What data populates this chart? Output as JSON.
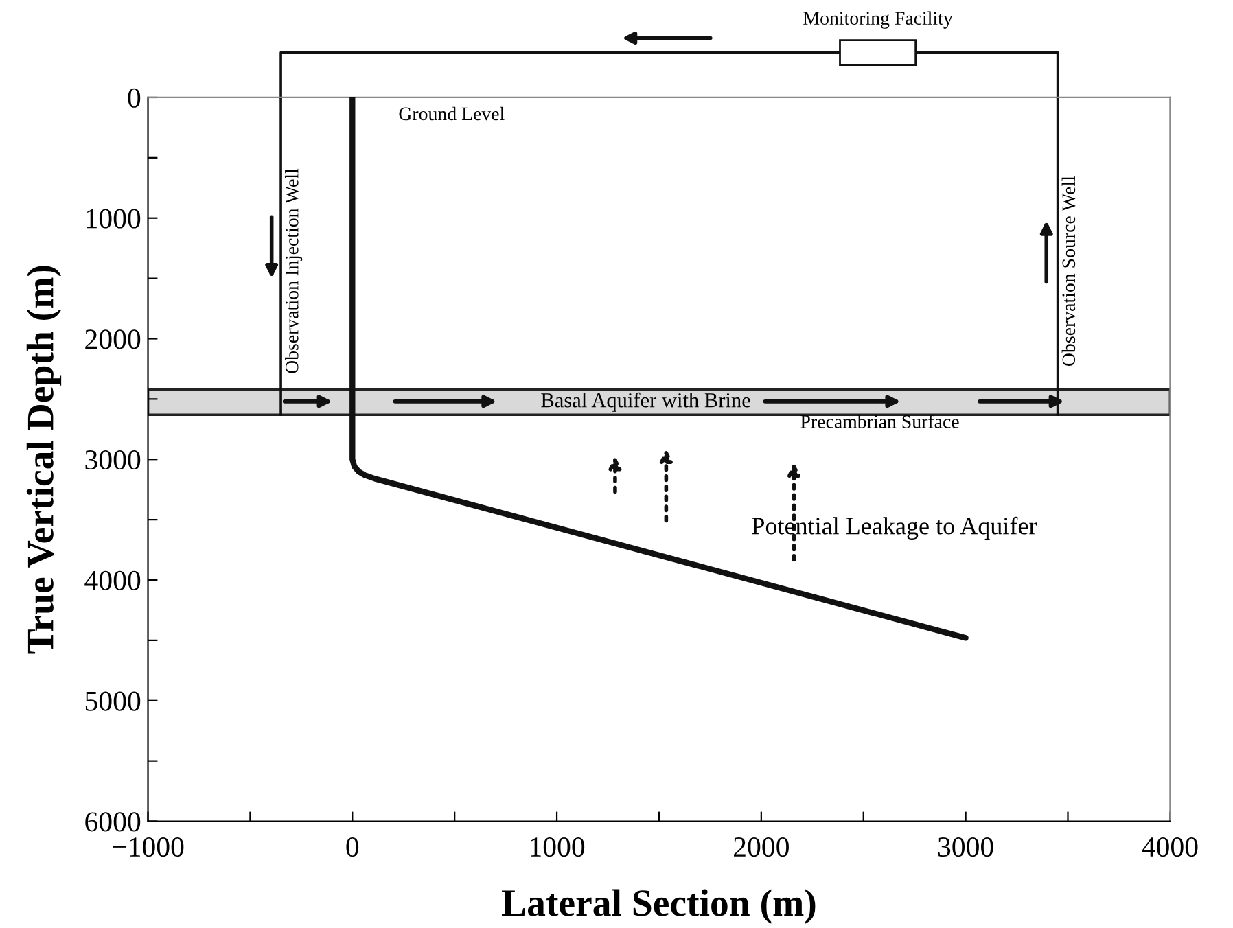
{
  "chart_data": {
    "type": "line",
    "xlabel": "Lateral Section (m)",
    "ylabel": "True Vertical Depth (m)",
    "x": [
      0,
      0,
      10,
      30,
      60,
      110,
      3000
    ],
    "series": [
      {
        "color": "#111111",
        "values": [
          0,
          3000,
          3060,
          3100,
          3130,
          3160,
          4480
        ]
      }
    ],
    "xlim": [
      -1000,
      4000
    ],
    "ylim": [
      6000,
      0
    ],
    "xticks": [
      {
        "value": -1000,
        "label": "−1000"
      },
      {
        "value": -500,
        "label": null
      },
      0,
      {
        "value": 500,
        "label": null
      },
      1000,
      {
        "value": 1500,
        "label": null
      },
      2000,
      {
        "value": 2500,
        "label": null
      },
      3000,
      {
        "value": 3500,
        "label": null
      },
      4000
    ],
    "yticks": [
      0,
      {
        "value": 500,
        "label": null
      },
      1000,
      {
        "value": 1500,
        "label": null
      },
      2000,
      {
        "value": 2500,
        "label": null
      },
      3000,
      {
        "value": 3500,
        "label": null
      },
      4000,
      {
        "value": 4500,
        "label": null
      },
      5000,
      {
        "value": 5500,
        "label": null
      },
      6000
    ],
    "bands": [
      {
        "axis": "y",
        "from": 2420,
        "to": 2630,
        "label": "Basal Aquifer with Brine",
        "color": "#d9d9d9"
      }
    ],
    "ref_lines": [
      {
        "axis": "x",
        "value": -350,
        "label": "Observation Injection Well",
        "color": "#111111"
      },
      {
        "axis": "x",
        "value": 3450,
        "label": "Observation Source Well",
        "color": "#111111"
      }
    ],
    "annotations": [
      "Monitoring Facility",
      "Ground Level",
      {
        "text": "Precambrian Surface",
        "x": 2580,
        "y": 2630
      },
      "Potential Leakage to Aquifer"
    ],
    "grid": false,
    "legend": false,
    "marker": "none",
    "line_style": "solid"
  }
}
